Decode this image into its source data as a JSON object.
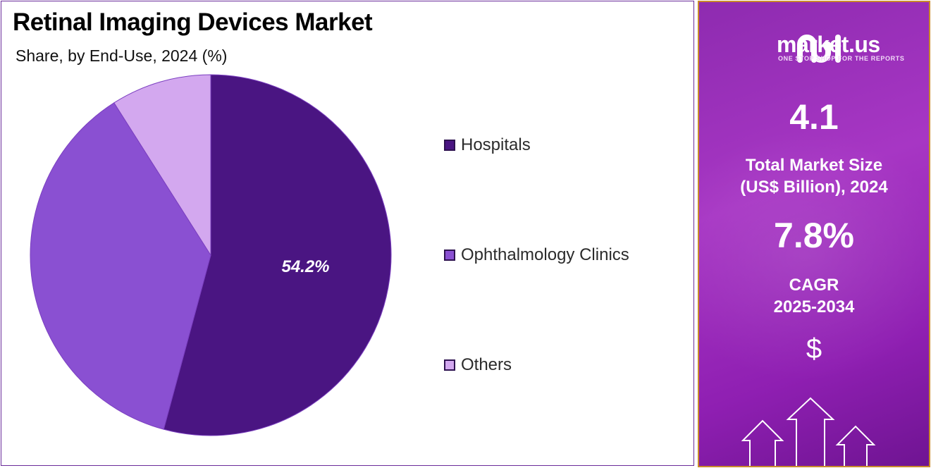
{
  "chart_data": {
    "type": "pie",
    "title": "Retinal Imaging Devices Market",
    "subtitle": "Share, by End-Use, 2024 (%)",
    "slices": [
      {
        "name": "Hospitals",
        "value": 54.2,
        "color": "#4a1582",
        "label": "54.2%"
      },
      {
        "name": "Ophthalmology Clinics",
        "value": 36.8,
        "color": "#8a50d2",
        "label": ""
      },
      {
        "name": "Others",
        "value": 9.0,
        "color": "#d3a8ef",
        "label": ""
      }
    ],
    "legend_position": "right"
  },
  "info": {
    "brand": "market.us",
    "tagline": "ONE STOP SHOP FOR THE REPORTS",
    "market_size": "4.1",
    "market_size_label_line1": "Total Market Size",
    "market_size_label_line2": "(US$ Billion), 2024",
    "cagr": "7.8%",
    "cagr_label_line1": "CAGR",
    "cagr_label_line2": "2025-2034",
    "currency_symbol": "$",
    "accent_color": "#a736c4"
  }
}
